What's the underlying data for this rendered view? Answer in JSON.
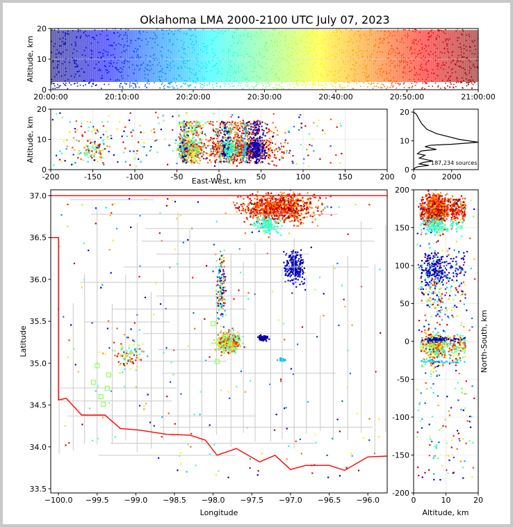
{
  "figure": {
    "title": "Oklahoma LMA 2000-2100 UTC July 07, 2023",
    "source_count_label": "187,234 sources"
  },
  "chart_data": [
    {
      "type": "scatter",
      "panel": "time-altitude",
      "xlabel": "",
      "ylabel": "Altitude, km",
      "x_ticks": [
        "20:00:00",
        "20:10:00",
        "20:20:00",
        "20:30:00",
        "20:40:00",
        "20:50:00",
        "21:00:00"
      ],
      "xlim_minutes": [
        0,
        60
      ],
      "ylim": [
        0,
        20
      ],
      "y_ticks": [
        0,
        10,
        20
      ],
      "colormap": "jet (by time)"
    },
    {
      "type": "scatter",
      "panel": "east-west-altitude",
      "xlabel": "East-West, km",
      "ylabel": "Altitude, km",
      "xlim": [
        -200,
        200
      ],
      "ylim": [
        0,
        20
      ],
      "x_ticks": [
        -200,
        -150,
        -100,
        -50,
        0,
        50,
        100,
        150,
        200
      ],
      "y_ticks": [
        0,
        10,
        20
      ]
    },
    {
      "type": "line",
      "panel": "altitude-histogram",
      "xlabel": "",
      "ylabel": "",
      "xlim": [
        0,
        3400
      ],
      "ylim": [
        0,
        21
      ],
      "x_ticks": [
        0,
        2000
      ],
      "y_ticks": [
        0,
        10,
        20
      ],
      "annotation": "187,234 sources",
      "profile": [
        [
          0,
          20
        ],
        [
          150,
          19.2
        ],
        [
          260,
          17.8
        ],
        [
          420,
          16
        ],
        [
          700,
          14
        ],
        [
          1200,
          12.5
        ],
        [
          2400,
          10.5
        ],
        [
          3400,
          9.5
        ],
        [
          2000,
          8.8
        ],
        [
          900,
          8.5
        ],
        [
          600,
          8
        ],
        [
          1200,
          7
        ],
        [
          400,
          6.5
        ],
        [
          200,
          5.5
        ],
        [
          600,
          5
        ],
        [
          300,
          4
        ],
        [
          1000,
          3
        ],
        [
          500,
          2.5
        ],
        [
          300,
          2
        ],
        [
          800,
          1.5
        ],
        [
          200,
          1
        ],
        [
          50,
          0.5
        ],
        [
          0,
          0
        ]
      ]
    },
    {
      "type": "scatter",
      "panel": "plan-view-map",
      "xlabel": "Longitude",
      "ylabel": "Latitude",
      "xlim": [
        -100.1,
        -95.75
      ],
      "ylim": [
        33.45,
        37.07
      ],
      "x_ticks": [
        -100.0,
        -99.5,
        -99.0,
        -98.5,
        -98.0,
        -97.5,
        -97.0,
        -96.5,
        -96.0
      ],
      "y_ticks": [
        33.5,
        34.0,
        34.5,
        35.0,
        35.5,
        36.0,
        36.5,
        37.0
      ],
      "x_tick_labels": [
        "−100.0",
        "−99.5",
        "−99.0",
        "−98.5",
        "−98.0",
        "−97.5",
        "−97.0",
        "−96.5",
        "−96.0"
      ],
      "y_tick_labels": [
        "33.5",
        "34.0",
        "34.5",
        "35.0",
        "35.5",
        "36.0",
        "36.5",
        "37.0"
      ],
      "stations": [
        [
          -99.55,
          34.77
        ],
        [
          -99.5,
          34.97
        ],
        [
          -99.45,
          34.6
        ],
        [
          -99.42,
          34.51
        ],
        [
          -99.37,
          34.7
        ],
        [
          -99.35,
          34.86
        ],
        [
          -98.0,
          35.47
        ],
        [
          -97.95,
          35.02
        ]
      ]
    },
    {
      "type": "scatter",
      "panel": "altitude-north-south",
      "xlabel": "Altitude, km",
      "ylabel": "North-South, km",
      "xlim": [
        0,
        20
      ],
      "ylim": [
        -200,
        200
      ],
      "x_ticks": [
        0,
        10,
        20
      ],
      "y_ticks": [
        -200,
        -150,
        -100,
        -50,
        0,
        50,
        100,
        150,
        200
      ]
    }
  ],
  "colors": {
    "state_border": "#ff0000",
    "county_lines": "#c8c8c8",
    "frame_bg": "#ffffff",
    "outer_bg": "#c8c8c8",
    "station_marker": "#7cff3c"
  }
}
